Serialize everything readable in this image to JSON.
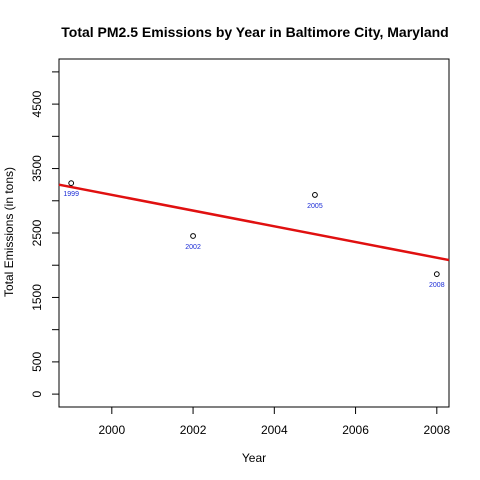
{
  "chart_data": {
    "type": "scatter",
    "title": "Total PM2.5 Emissions by Year in Baltimore City, Maryland",
    "xlabel": "Year",
    "ylabel": "Total Emissions (in tons)",
    "xlim": [
      1998.7,
      2008.3
    ],
    "ylim": [
      -200,
      5200
    ],
    "x_ticks": [
      2000,
      2002,
      2004,
      2006,
      2008
    ],
    "y_ticks_labeled": [
      0,
      500,
      1500,
      2500,
      3500,
      4500
    ],
    "y_ticks_all": [
      0,
      500,
      1000,
      1500,
      2000,
      2500,
      3000,
      3500,
      4000,
      4500,
      5000
    ],
    "grid": false,
    "points": [
      {
        "x": 1999,
        "y": 3274,
        "label": "1999"
      },
      {
        "x": 2002,
        "y": 2454,
        "label": "2002"
      },
      {
        "x": 2005,
        "y": 3091,
        "label": "2005"
      },
      {
        "x": 2008,
        "y": 1862,
        "label": "2008"
      }
    ],
    "trend_line": {
      "from": [
        1998.7,
        3250
      ],
      "to": [
        2008.3,
        2080
      ],
      "color": "#e01010"
    },
    "point_label_color": "#1a2bd6"
  }
}
